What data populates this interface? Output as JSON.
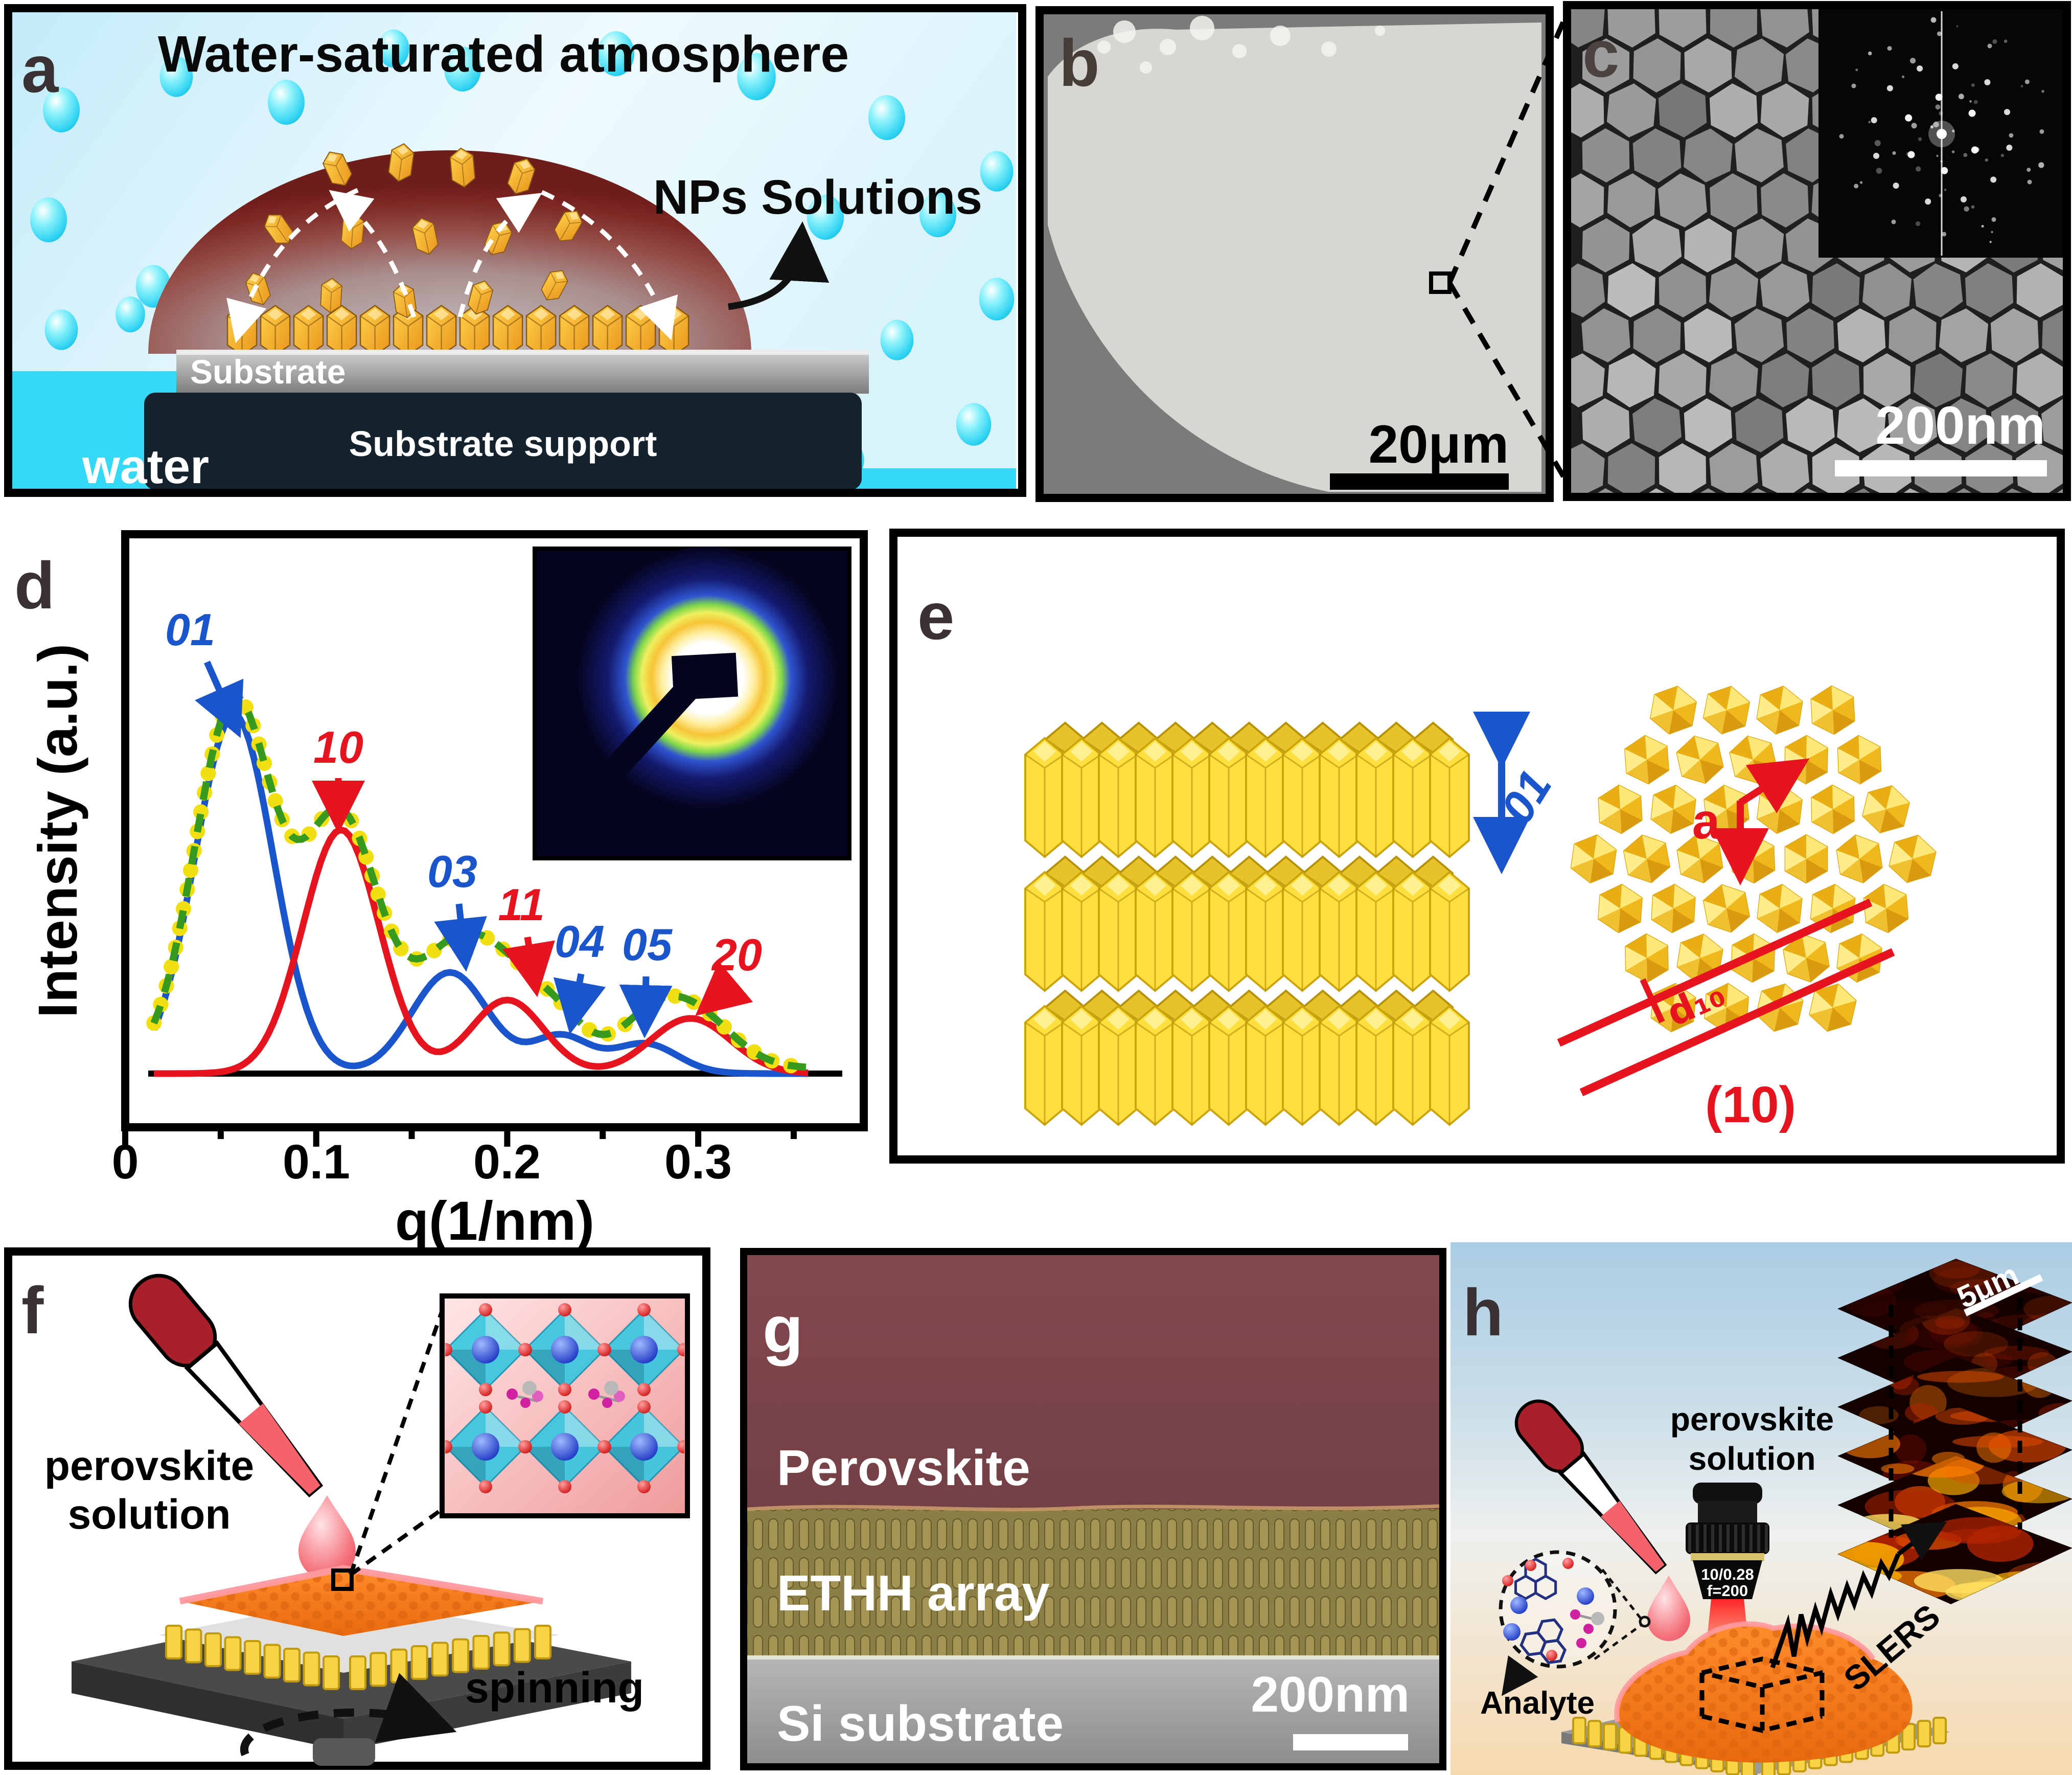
{
  "figure": {
    "panel_a": {
      "label": "a",
      "title": "Water-saturated atmosphere",
      "nps_solutions": "NPs Solutions",
      "substrate": "Substrate",
      "substrate_support": "Substrate support",
      "water": "water"
    },
    "panel_b": {
      "label": "b",
      "scale_bar": "20μm"
    },
    "panel_c": {
      "label": "c",
      "scale_bar": "200nm"
    },
    "panel_d": {
      "label": "d",
      "ylabel": "Intensity (a.u.)",
      "xlabel": "q(1/nm)"
    },
    "panel_e": {
      "label": "e",
      "stack_spacing_label": "01",
      "lattice_vector_label": "a",
      "plane_spacing_label": "d₁₀",
      "plane_label": "(10)"
    },
    "panel_f": {
      "label": "f",
      "solution_line1": "perovskite",
      "solution_line2": "solution",
      "spinning": "spinning"
    },
    "panel_g": {
      "label": "g",
      "layer_top": "Perovskite",
      "layer_mid": "ETHH array",
      "layer_bottom": "Si substrate",
      "scale_bar": "200nm"
    },
    "panel_h": {
      "label": "h",
      "solution_line1": "perovskite",
      "solution_line2": "solution",
      "analyte": "Analyte",
      "signal": "SLERS",
      "objective_line1": "10/0.28",
      "objective_line2": "f=200",
      "stack_scale_bar": "5μm"
    }
  },
  "chart_data": {
    "type": "line",
    "title": "",
    "xlabel": "q(1/nm)",
    "ylabel": "Intensity (a.u.)",
    "xlim": [
      0,
      0.385
    ],
    "xticks": [
      0,
      0.1,
      0.2,
      0.3
    ],
    "grid": false,
    "series": [
      {
        "name": "01-family Gaussian components",
        "color": "#1a55cc",
        "peaks": [
          {
            "label": "01",
            "q": 0.057,
            "height": 0.78,
            "sigma": 0.0205
          },
          {
            "label": "03",
            "q": 0.17,
            "height": 0.22,
            "sigma": 0.02
          },
          {
            "label": "04",
            "q": 0.228,
            "height": 0.08,
            "sigma": 0.015
          },
          {
            "label": "05",
            "q": 0.272,
            "height": 0.065,
            "sigma": 0.017
          }
        ]
      },
      {
        "name": "10-family Gaussian components",
        "color": "#e5141e",
        "peaks": [
          {
            "label": "10",
            "q": 0.113,
            "height": 0.53,
            "sigma": 0.02
          },
          {
            "label": "11",
            "q": 0.2,
            "height": 0.16,
            "sigma": 0.019
          },
          {
            "label": "20",
            "q": 0.296,
            "height": 0.12,
            "sigma": 0.021
          }
        ]
      },
      {
        "name": "experimental data (yellow dots)",
        "color": "#f2df12",
        "type": "sum-dots"
      },
      {
        "name": "total fit (green dashed)",
        "color": "#38991f",
        "type": "sum-dashed"
      }
    ],
    "annotations": [
      {
        "label": "01",
        "color": "#1a55cc"
      },
      {
        "label": "10",
        "color": "#e5141e"
      },
      {
        "label": "03",
        "color": "#1a55cc"
      },
      {
        "label": "11",
        "color": "#e5141e"
      },
      {
        "label": "04",
        "color": "#1a55cc"
      },
      {
        "label": "05",
        "color": "#1a55cc"
      },
      {
        "label": "20",
        "color": "#e5141e"
      }
    ]
  }
}
